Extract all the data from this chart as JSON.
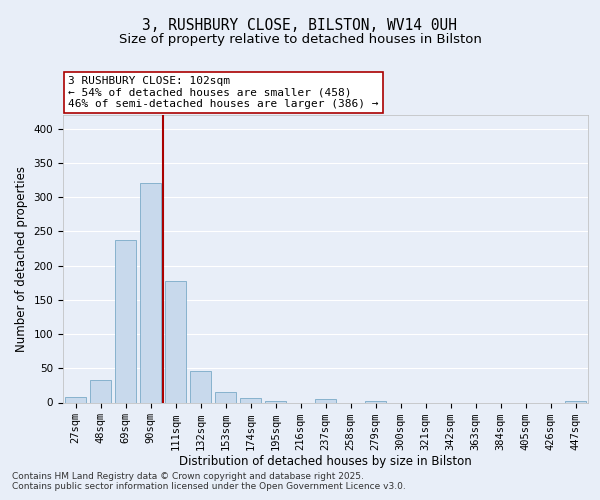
{
  "title_line1": "3, RUSHBURY CLOSE, BILSTON, WV14 0UH",
  "title_line2": "Size of property relative to detached houses in Bilston",
  "xlabel": "Distribution of detached houses by size in Bilston",
  "ylabel": "Number of detached properties",
  "bar_labels": [
    "27sqm",
    "48sqm",
    "69sqm",
    "90sqm",
    "111sqm",
    "132sqm",
    "153sqm",
    "174sqm",
    "195sqm",
    "216sqm",
    "237sqm",
    "258sqm",
    "279sqm",
    "300sqm",
    "321sqm",
    "342sqm",
    "363sqm",
    "384sqm",
    "405sqm",
    "426sqm",
    "447sqm"
  ],
  "bar_values": [
    8,
    33,
    238,
    320,
    178,
    46,
    15,
    7,
    2,
    0,
    5,
    0,
    2,
    0,
    0,
    0,
    0,
    0,
    0,
    0,
    2
  ],
  "bar_color": "#c8d9ec",
  "bar_edge_color": "#7aaac8",
  "vline_x": 3.5,
  "vline_color": "#aa0000",
  "annotation_text": "3 RUSHBURY CLOSE: 102sqm\n← 54% of detached houses are smaller (458)\n46% of semi-detached houses are larger (386) →",
  "annotation_box_color": "#ffffff",
  "annotation_box_edge": "#aa0000",
  "ylim": [
    0,
    420
  ],
  "yticks": [
    0,
    50,
    100,
    150,
    200,
    250,
    300,
    350,
    400
  ],
  "background_color": "#e8eef8",
  "plot_background": "#e8eef8",
  "footer_line1": "Contains HM Land Registry data © Crown copyright and database right 2025.",
  "footer_line2": "Contains public sector information licensed under the Open Government Licence v3.0.",
  "grid_color": "#ffffff",
  "title_fontsize": 10.5,
  "subtitle_fontsize": 9.5,
  "axis_label_fontsize": 8.5,
  "tick_fontsize": 7.5,
  "annotation_fontsize": 8,
  "footer_fontsize": 6.5
}
